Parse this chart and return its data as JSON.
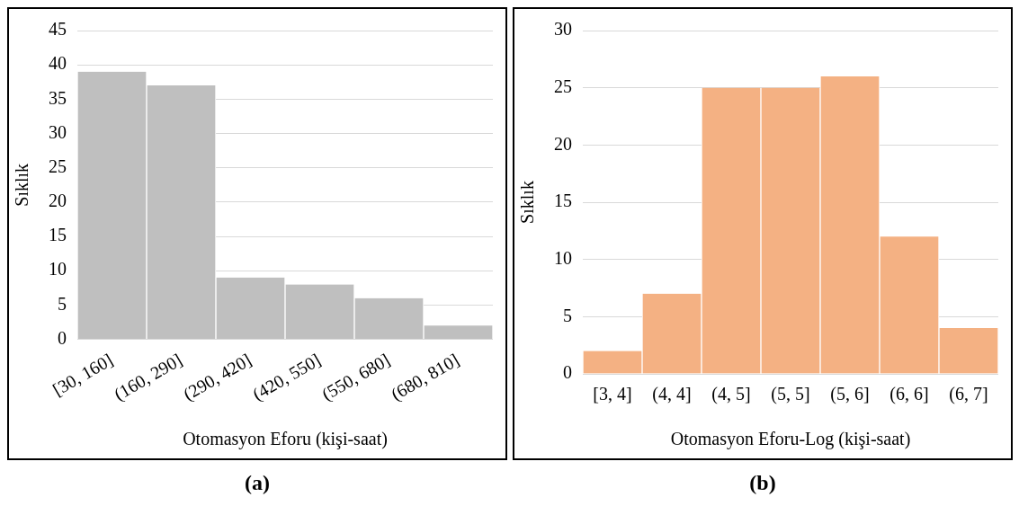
{
  "chart_data": [
    {
      "type": "bar",
      "categories": [
        "[30, 160]",
        "(160, 290]",
        "(290, 420]",
        "(420, 550]",
        "(550, 680]",
        "(680, 810]"
      ],
      "values": [
        39,
        37,
        9,
        8,
        6,
        2
      ],
      "color": "#bfbfbf",
      "ylim": [
        0,
        45
      ],
      "yticks": [
        0,
        5,
        10,
        15,
        20,
        25,
        30,
        35,
        40,
        45
      ],
      "grid": "y",
      "xlabel": "Otomasyon Eforu (kişi-saat)",
      "ylabel": "Sıklık",
      "annotations": [
        "(a)"
      ]
    },
    {
      "type": "bar",
      "categories": [
        "[3, 4]",
        "(4, 4]",
        "(4, 5]",
        "(5, 5]",
        "(5, 6]",
        "(6, 6]",
        "(6, 7]"
      ],
      "values": [
        2,
        7,
        25,
        25,
        26,
        12,
        4
      ],
      "color": "#f4b183",
      "ylim": [
        0,
        30
      ],
      "yticks": [
        0,
        5,
        10,
        15,
        20,
        25,
        30
      ],
      "grid": "y",
      "xlabel": "Otomasyon Eforu-Log (kişi-saat)",
      "ylabel": "Sıklık",
      "annotations": [
        "(b)"
      ]
    }
  ]
}
